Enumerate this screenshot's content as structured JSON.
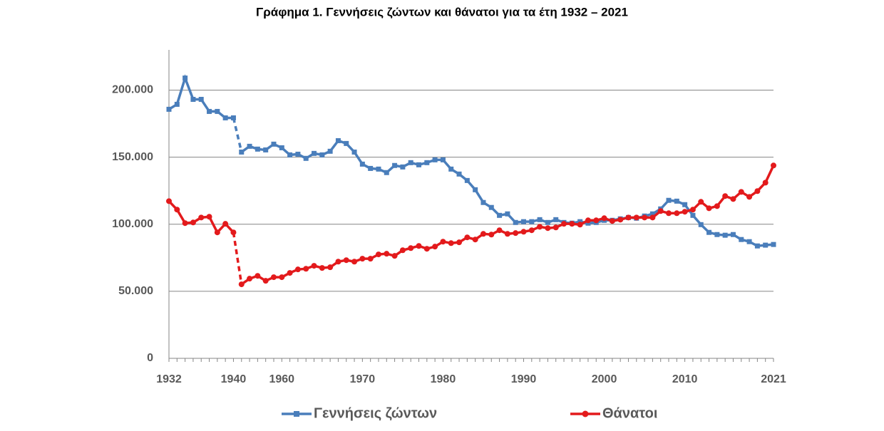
{
  "chart_data": {
    "type": "line",
    "title": "Γράφημα 1.  Γεννήσεις ζώντων και θάνατοι για τα έτη 1932 – 2021",
    "categories": [
      "1932",
      null,
      null,
      null,
      null,
      null,
      null,
      null,
      "1940",
      null,
      null,
      null,
      null,
      null,
      "1960",
      null,
      null,
      null,
      null,
      null,
      null,
      null,
      null,
      null,
      "1970",
      null,
      null,
      null,
      null,
      null,
      null,
      null,
      null,
      null,
      "1980",
      null,
      null,
      null,
      null,
      null,
      null,
      null,
      null,
      null,
      "1990",
      null,
      null,
      null,
      null,
      null,
      null,
      null,
      null,
      null,
      "2000",
      null,
      null,
      null,
      null,
      null,
      null,
      null,
      null,
      null,
      "2010",
      null,
      null,
      null,
      null,
      null,
      null,
      null,
      null,
      null,
      null,
      "2021"
    ],
    "dashed_after": "1940",
    "ylim": [
      0,
      230000
    ],
    "yticks": [
      {
        "value": 0,
        "label": "0"
      },
      {
        "value": 50000,
        "label": "50.000"
      },
      {
        "value": 100000,
        "label": "100.000"
      },
      {
        "value": 150000,
        "label": "150.000"
      },
      {
        "value": 200000,
        "label": "200.000"
      }
    ],
    "grid": true,
    "legend": "bottom",
    "series": [
      {
        "name": "Γεννήσεις ζώντων",
        "color": "#4a7ebb",
        "marker": "square",
        "values": [
          185700,
          189400,
          209000,
          193100,
          193100,
          184100,
          184100,
          179300,
          179300,
          153800,
          158100,
          156000,
          155400,
          159700,
          157000,
          151700,
          152200,
          149100,
          152800,
          151700,
          154400,
          162300,
          160200,
          153800,
          144800,
          141600,
          141100,
          138500,
          143800,
          142700,
          145900,
          144300,
          145900,
          148000,
          148000,
          141100,
          137400,
          132600,
          125700,
          116200,
          112500,
          106600,
          107700,
          101300,
          101900,
          101900,
          103400,
          101300,
          103400,
          101300,
          100800,
          101900,
          100800,
          101300,
          102900,
          102900,
          104000,
          105000,
          104500,
          106100,
          107700,
          111400,
          117800,
          117200,
          114600,
          106600,
          99700,
          93900,
          92300,
          91800,
          92300,
          88600,
          87000,
          83800,
          84400,
          84900
        ]
      },
      {
        "name": "Θάνατοι",
        "color": "#e31a1c",
        "marker": "circle",
        "values": [
          117200,
          110900,
          100800,
          101300,
          105000,
          105600,
          93900,
          100300,
          93900,
          55200,
          59400,
          61500,
          57800,
          60500,
          60500,
          63700,
          66300,
          66800,
          69000,
          67400,
          67900,
          72100,
          73200,
          72100,
          74300,
          74300,
          77500,
          78000,
          76400,
          80600,
          82200,
          83800,
          81700,
          83300,
          87000,
          85900,
          86500,
          90200,
          88600,
          92800,
          92300,
          95500,
          92800,
          93400,
          94400,
          95500,
          98100,
          97100,
          97600,
          100300,
          100300,
          99700,
          102900,
          102900,
          104500,
          102400,
          103400,
          105000,
          105000,
          105000,
          105000,
          109800,
          108200,
          108200,
          109300,
          110900,
          116700,
          111900,
          113500,
          121000,
          118800,
          124100,
          120400,
          124700,
          131000,
          143800
        ]
      }
    ]
  }
}
